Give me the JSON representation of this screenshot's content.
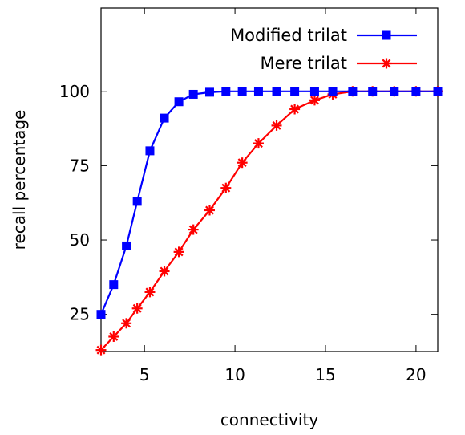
{
  "chart_data": {
    "type": "line",
    "title": "",
    "xlabel": "connectivity",
    "ylabel": "recall percentage",
    "xlim": [
      2.6,
      21.2
    ],
    "ylim": [
      12.5,
      128
    ],
    "xticks": [
      5,
      10,
      15,
      20
    ],
    "yticks": [
      25,
      50,
      75,
      100
    ],
    "grid": false,
    "legend_position": "top-right",
    "series": [
      {
        "name": "Modified trilat",
        "color": "#0000ff",
        "marker": "square",
        "x": [
          2.6,
          3.3,
          4.0,
          4.6,
          5.3,
          6.1,
          6.9,
          7.7,
          8.6,
          9.5,
          10.4,
          11.3,
          12.3,
          13.3,
          14.4,
          15.4,
          16.5,
          17.6,
          18.8,
          20.0,
          21.2
        ],
        "y": [
          25,
          35,
          48,
          63,
          80,
          91,
          96.5,
          99,
          99.7,
          100,
          100,
          100,
          100,
          100,
          100,
          100,
          100,
          100,
          100,
          100,
          100
        ]
      },
      {
        "name": "Mere trilat",
        "color": "#ff0000",
        "marker": "star",
        "x": [
          2.6,
          3.3,
          4.0,
          4.6,
          5.3,
          6.1,
          6.9,
          7.7,
          8.6,
          9.5,
          10.4,
          11.3,
          12.3,
          13.3,
          14.4,
          15.4,
          16.5,
          17.6,
          18.8,
          20.0,
          21.2
        ],
        "y": [
          13,
          17.5,
          22,
          27,
          32.5,
          39.5,
          46,
          53.5,
          60,
          67.5,
          76,
          82.5,
          88.5,
          94,
          97,
          99,
          100,
          100,
          100,
          100,
          100
        ]
      }
    ]
  }
}
